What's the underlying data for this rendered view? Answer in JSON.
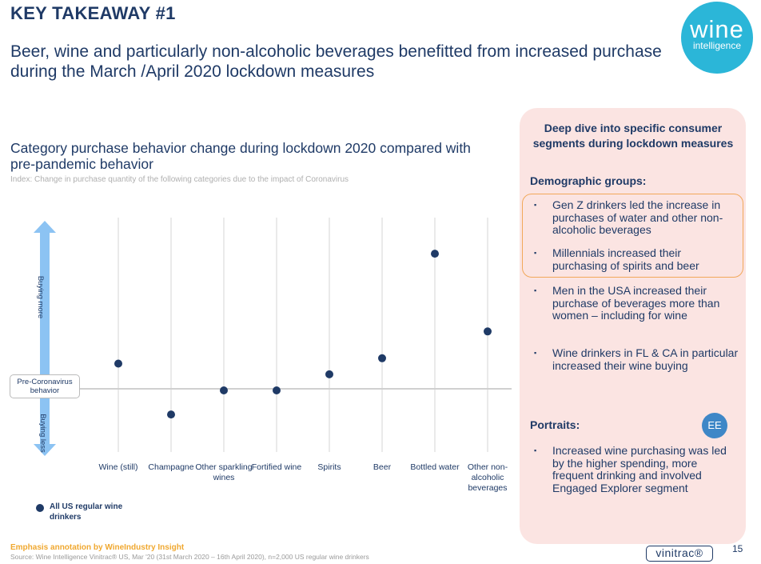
{
  "header": {
    "key_takeaway": "KEY TAKEAWAY #1",
    "subtitle": "Beer, wine and particularly non-alcoholic beverages benefitted from increased purchase during the March /April 2020 lockdown measures"
  },
  "logo": {
    "word": "wine",
    "sub": "intelligence"
  },
  "chart_data": {
    "type": "scatter",
    "title": "Category purchase behavior change during lockdown 2020 compared with pre-pandemic behavior",
    "index_note": "Index: Change in purchase quantity of the following categories due to the impact of Coronavirus",
    "categories": [
      "Wine (still)",
      "Champagne",
      "Other sparkling wines",
      "Fortified wine",
      "Spirits",
      "Beer",
      "Bottled water",
      "Other non-alcoholic beverages"
    ],
    "series": [
      {
        "name": "All US regular wine drinkers",
        "values": [
          1.0,
          -0.9,
          0.0,
          0.0,
          0.6,
          1.2,
          5.1,
          2.2
        ]
      }
    ],
    "baseline_label": "Pre-Coronavirus behavior",
    "axis_up_label": "Buying more",
    "axis_down_label": "Buying less",
    "ylim": [
      -3,
      6
    ]
  },
  "panel": {
    "title": "Deep dive into specific consumer segments during lockdown measures",
    "demographic_heading": "Demographic groups:",
    "bullets": [
      "Gen Z drinkers led the increase in purchases of water and other non-alcoholic beverages",
      "Millennials increased their purchasing of spirits and beer",
      "Men in the USA increased their purchase of beverages more than women – including for wine",
      "Wine drinkers in FL & CA in particular increased their wine buying"
    ],
    "portraits_heading": "Portraits:",
    "portrait_badge": "EE",
    "portrait_bullets": [
      "Increased wine purchasing was led by the higher spending, more frequent drinking and involved Engaged Explorer segment"
    ],
    "bullet_marker": "▪"
  },
  "footer": {
    "emphasis": "Emphasis annotation by WineIndustry Insight",
    "source": "Source: Wine Intelligence Vinitrac® US, Mar '20 (31st March 2020 – 16th April 2020), n=2,000 US regular wine drinkers",
    "brand": "vinitrac®",
    "page": "15"
  },
  "colors": {
    "navy": "#1f3a66",
    "cyan": "#2bb6d8",
    "panel": "#fbe4e2",
    "highlight": "#f2a85a",
    "arrow": "#8cc3f3"
  }
}
